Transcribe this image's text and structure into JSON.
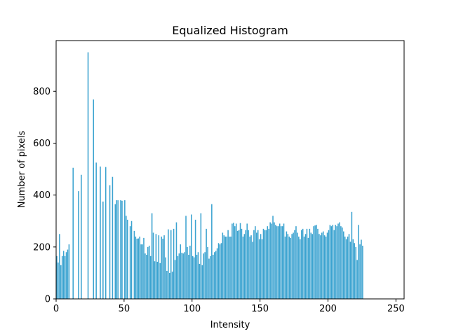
{
  "colors": {
    "bar": "#3ba3d0",
    "axis": "#000000",
    "background": "#ffffff"
  },
  "chart_data": {
    "type": "bar",
    "title": "Equalized Histogram",
    "xlabel": "Intensity",
    "ylabel": "Number of pixels",
    "xlim": [
      0,
      256
    ],
    "ylim": [
      0,
      995
    ],
    "xticks": [
      0,
      50,
      100,
      150,
      200,
      250
    ],
    "yticks": [
      0,
      200,
      400,
      600,
      800
    ],
    "grid": false,
    "bars": [
      [
        0,
        165
      ],
      [
        1,
        140
      ],
      [
        2,
        250
      ],
      [
        3,
        130
      ],
      [
        4,
        165
      ],
      [
        5,
        185
      ],
      [
        6,
        165
      ],
      [
        7,
        180
      ],
      [
        8,
        190
      ],
      [
        9,
        210
      ],
      [
        12,
        505
      ],
      [
        16,
        415
      ],
      [
        18,
        478
      ],
      [
        23,
        950
      ],
      [
        27,
        768
      ],
      [
        29,
        525
      ],
      [
        32,
        510
      ],
      [
        34,
        375
      ],
      [
        36,
        508
      ],
      [
        39,
        438
      ],
      [
        41,
        470
      ],
      [
        43,
        365
      ],
      [
        44,
        380
      ],
      [
        45,
        380
      ],
      [
        47,
        380
      ],
      [
        48,
        378
      ],
      [
        50,
        380
      ],
      [
        51,
        320
      ],
      [
        52,
        305
      ],
      [
        54,
        280
      ],
      [
        55,
        300
      ],
      [
        57,
        262
      ],
      [
        58,
        240
      ],
      [
        59,
        232
      ],
      [
        60,
        233
      ],
      [
        61,
        240
      ],
      [
        62,
        210
      ],
      [
        63,
        210
      ],
      [
        64,
        235
      ],
      [
        65,
        175
      ],
      [
        66,
        170
      ],
      [
        67,
        200
      ],
      [
        68,
        205
      ],
      [
        69,
        165
      ],
      [
        70,
        330
      ],
      [
        71,
        255
      ],
      [
        72,
        145
      ],
      [
        73,
        250
      ],
      [
        74,
        143
      ],
      [
        75,
        245
      ],
      [
        76,
        138
      ],
      [
        77,
        240
      ],
      [
        78,
        232
      ],
      [
        79,
        245
      ],
      [
        80,
        160
      ],
      [
        81,
        108
      ],
      [
        82,
        268
      ],
      [
        83,
        100
      ],
      [
        84,
        265
      ],
      [
        85,
        105
      ],
      [
        86,
        270
      ],
      [
        87,
        150
      ],
      [
        88,
        295
      ],
      [
        89,
        165
      ],
      [
        90,
        175
      ],
      [
        91,
        210
      ],
      [
        92,
        178
      ],
      [
        93,
        175
      ],
      [
        94,
        180
      ],
      [
        95,
        320
      ],
      [
        96,
        200
      ],
      [
        97,
        170
      ],
      [
        98,
        205
      ],
      [
        99,
        325
      ],
      [
        100,
        165
      ],
      [
        101,
        160
      ],
      [
        102,
        305
      ],
      [
        103,
        170
      ],
      [
        104,
        180
      ],
      [
        105,
        135
      ],
      [
        106,
        330
      ],
      [
        107,
        130
      ],
      [
        108,
        175
      ],
      [
        109,
        180
      ],
      [
        110,
        270
      ],
      [
        111,
        200
      ],
      [
        112,
        155
      ],
      [
        113,
        165
      ],
      [
        114,
        365
      ],
      [
        115,
        170
      ],
      [
        116,
        180
      ],
      [
        117,
        185
      ],
      [
        118,
        195
      ],
      [
        119,
        215
      ],
      [
        120,
        210
      ],
      [
        121,
        215
      ],
      [
        122,
        255
      ],
      [
        123,
        245
      ],
      [
        124,
        240
      ],
      [
        125,
        240
      ],
      [
        126,
        265
      ],
      [
        127,
        240
      ],
      [
        128,
        240
      ],
      [
        129,
        290
      ],
      [
        130,
        293
      ],
      [
        131,
        280
      ],
      [
        132,
        290
      ],
      [
        133,
        262
      ],
      [
        134,
        265
      ],
      [
        135,
        292
      ],
      [
        136,
        270
      ],
      [
        137,
        240
      ],
      [
        138,
        250
      ],
      [
        139,
        265
      ],
      [
        140,
        290
      ],
      [
        141,
        265
      ],
      [
        142,
        240
      ],
      [
        143,
        245
      ],
      [
        144,
        220
      ],
      [
        145,
        265
      ],
      [
        146,
        280
      ],
      [
        147,
        255
      ],
      [
        148,
        265
      ],
      [
        149,
        230
      ],
      [
        150,
        250
      ],
      [
        151,
        230
      ],
      [
        152,
        270
      ],
      [
        153,
        265
      ],
      [
        154,
        265
      ],
      [
        155,
        280
      ],
      [
        156,
        270
      ],
      [
        157,
        295
      ],
      [
        158,
        290
      ],
      [
        159,
        320
      ],
      [
        160,
        295
      ],
      [
        161,
        285
      ],
      [
        162,
        280
      ],
      [
        163,
        280
      ],
      [
        164,
        290
      ],
      [
        165,
        280
      ],
      [
        166,
        280
      ],
      [
        167,
        290
      ],
      [
        168,
        240
      ],
      [
        169,
        260
      ],
      [
        170,
        250
      ],
      [
        171,
        240
      ],
      [
        172,
        235
      ],
      [
        173,
        250
      ],
      [
        174,
        255
      ],
      [
        175,
        265
      ],
      [
        176,
        280
      ],
      [
        177,
        255
      ],
      [
        178,
        240
      ],
      [
        179,
        230
      ],
      [
        180,
        265
      ],
      [
        181,
        270
      ],
      [
        182,
        240
      ],
      [
        183,
        250
      ],
      [
        184,
        270
      ],
      [
        185,
        235
      ],
      [
        186,
        270
      ],
      [
        187,
        255
      ],
      [
        188,
        250
      ],
      [
        189,
        280
      ],
      [
        190,
        283
      ],
      [
        191,
        285
      ],
      [
        192,
        270
      ],
      [
        193,
        250
      ],
      [
        194,
        245
      ],
      [
        195,
        255
      ],
      [
        196,
        260
      ],
      [
        197,
        245
      ],
      [
        198,
        240
      ],
      [
        199,
        255
      ],
      [
        200,
        265
      ],
      [
        201,
        285
      ],
      [
        202,
        280
      ],
      [
        203,
        285
      ],
      [
        204,
        265
      ],
      [
        205,
        285
      ],
      [
        206,
        280
      ],
      [
        207,
        290
      ],
      [
        208,
        295
      ],
      [
        209,
        280
      ],
      [
        210,
        275
      ],
      [
        211,
        260
      ],
      [
        212,
        240
      ],
      [
        213,
        230
      ],
      [
        214,
        240
      ],
      [
        215,
        250
      ],
      [
        216,
        220
      ],
      [
        217,
        335
      ],
      [
        218,
        230
      ],
      [
        219,
        215
      ],
      [
        220,
        200
      ],
      [
        221,
        150
      ],
      [
        222,
        285
      ],
      [
        223,
        210
      ],
      [
        224,
        228
      ],
      [
        225,
        205
      ]
    ]
  }
}
